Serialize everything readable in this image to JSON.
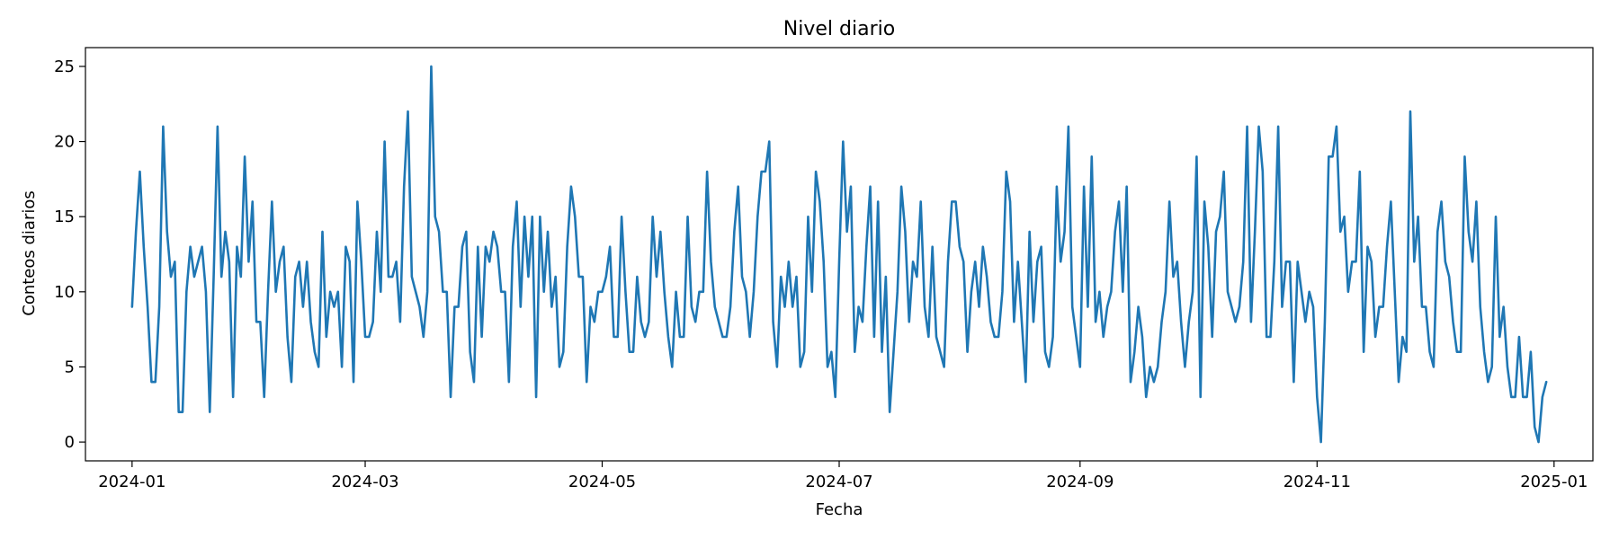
{
  "chart_data": {
    "type": "line",
    "title": "Nivel diario",
    "xlabel": "Fecha",
    "ylabel": "Conteos diarios",
    "grid": false,
    "legend": "none",
    "x_start": "2024-01-01",
    "x_step_days": 1,
    "xlim": [
      "2023-12-20",
      "2025-01-11"
    ],
    "ylim": [
      -1.25,
      26.25
    ],
    "x_ticks": [
      "2024-01-01",
      "2024-03-01",
      "2024-05-01",
      "2024-07-01",
      "2024-09-01",
      "2024-11-01",
      "2025-01-01"
    ],
    "x_tick_labels": [
      "2024-01",
      "2024-03",
      "2024-05",
      "2024-07",
      "2024-09",
      "2024-11",
      "2025-01"
    ],
    "y_ticks": [
      0,
      5,
      10,
      15,
      20,
      25
    ],
    "y_tick_labels": [
      "0",
      "5",
      "10",
      "15",
      "20",
      "25"
    ],
    "series": [
      {
        "color": "#1f77b4",
        "values": [
          9,
          14,
          18,
          13,
          9,
          4,
          4,
          9,
          21,
          14,
          11,
          12,
          2,
          2,
          10,
          13,
          11,
          12,
          13,
          10,
          2,
          11,
          21,
          11,
          14,
          12,
          3,
          13,
          11,
          19,
          12,
          16,
          8,
          8,
          3,
          10,
          16,
          10,
          12,
          13,
          7,
          4,
          11,
          12,
          9,
          12,
          8,
          6,
          5,
          14,
          7,
          10,
          9,
          10,
          5,
          13,
          12,
          4,
          16,
          12,
          7,
          7,
          8,
          14,
          10,
          20,
          11,
          11,
          12,
          8,
          17,
          22,
          11,
          10,
          9,
          7,
          10,
          25,
          15,
          14,
          10,
          10,
          3,
          9,
          9,
          13,
          14,
          6,
          4,
          13,
          7,
          13,
          12,
          14,
          13,
          10,
          10,
          4,
          13,
          16,
          9,
          15,
          11,
          15,
          3,
          15,
          10,
          14,
          9,
          11,
          5,
          6,
          13,
          17,
          15,
          11,
          11,
          4,
          9,
          8,
          10,
          10,
          11,
          13,
          7,
          7,
          15,
          10,
          6,
          6,
          11,
          8,
          7,
          8,
          15,
          11,
          14,
          10,
          7,
          5,
          10,
          7,
          7,
          15,
          9,
          8,
          10,
          10,
          18,
          12,
          9,
          8,
          7,
          7,
          9,
          14,
          17,
          11,
          10,
          7,
          10,
          15,
          18,
          18,
          20,
          8,
          5,
          11,
          9,
          12,
          9,
          11,
          5,
          6,
          15,
          10,
          18,
          16,
          12,
          5,
          6,
          3,
          12,
          20,
          14,
          17,
          6,
          9,
          8,
          13,
          17,
          7,
          16,
          6,
          11,
          2,
          6,
          10,
          17,
          14,
          8,
          12,
          11,
          16,
          9,
          7,
          13,
          7,
          6,
          5,
          12,
          16,
          16,
          13,
          12,
          6,
          10,
          12,
          9,
          13,
          11,
          8,
          7,
          7,
          10,
          18,
          16,
          8,
          12,
          8,
          4,
          14,
          8,
          12,
          13,
          6,
          5,
          7,
          17,
          12,
          14,
          21,
          9,
          7,
          5,
          17,
          9,
          19,
          8,
          10,
          7,
          9,
          10,
          14,
          16,
          10,
          17,
          4,
          6,
          9,
          7,
          3,
          5,
          4,
          5,
          8,
          10,
          16,
          11,
          12,
          8,
          5,
          8,
          10,
          19,
          3,
          16,
          13,
          7,
          14,
          15,
          18,
          10,
          9,
          8,
          9,
          12,
          21,
          8,
          14,
          21,
          18,
          7,
          7,
          12,
          21,
          9,
          12,
          12,
          4,
          12,
          10,
          8,
          10,
          9,
          3,
          0,
          8,
          19,
          19,
          21,
          14,
          15,
          10,
          12,
          12,
          18,
          6,
          13,
          12,
          7,
          9,
          9,
          13,
          16,
          10,
          4,
          7,
          6,
          22,
          12,
          15,
          9,
          9,
          6,
          5,
          14,
          16,
          12,
          11,
          8,
          6,
          6,
          19,
          14,
          12,
          16,
          9,
          6,
          4,
          5,
          15,
          7,
          9,
          5,
          3,
          3,
          7,
          3,
          3,
          6,
          1,
          0,
          3,
          4
        ]
      }
    ]
  }
}
